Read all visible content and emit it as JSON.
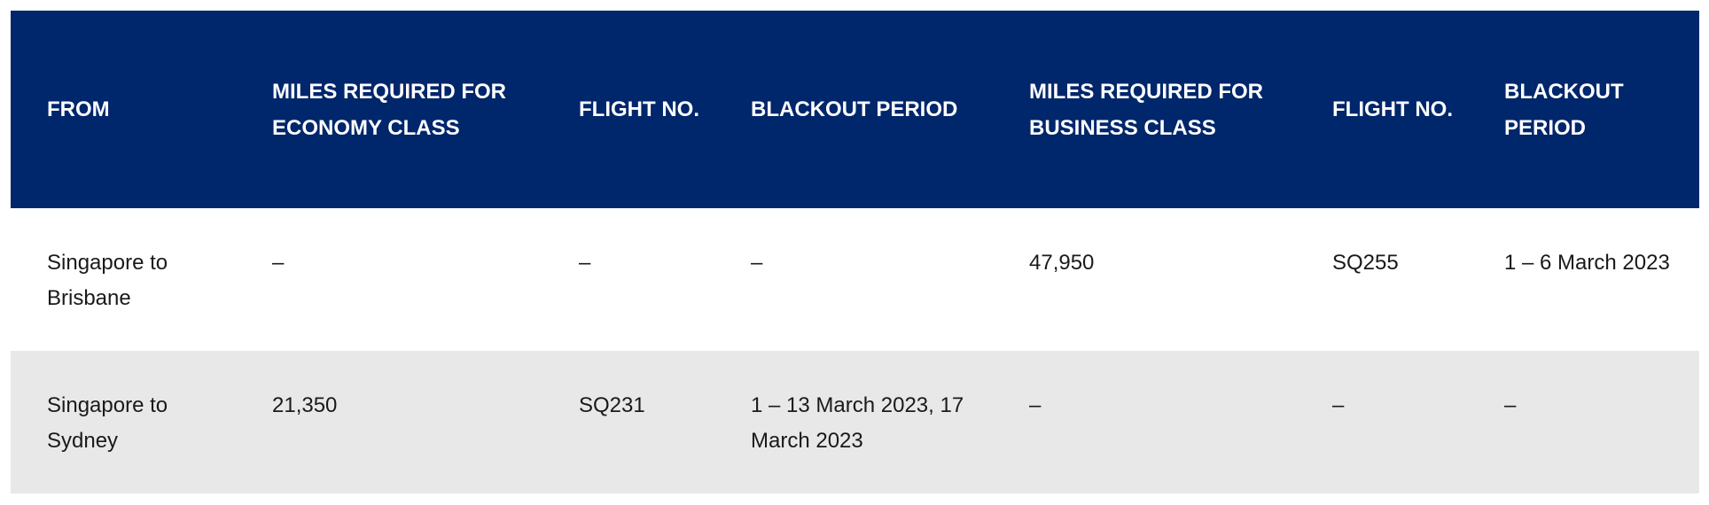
{
  "table": {
    "headers": [
      "FROM",
      "MILES REQUIRED FOR ECONOMY CLASS",
      "FLIGHT NO.",
      "BLACKOUT PERIOD",
      "MILES REQUIRED FOR BUSINESS CLASS",
      "FLIGHT NO.",
      "BLACKOUT PERIOD"
    ],
    "rows": [
      [
        "Singapore to Brisbane",
        "–",
        "–",
        "–",
        "47,950",
        "SQ255",
        "1 – 6 March 2023"
      ],
      [
        "Singapore to Sydney",
        "21,350",
        "SQ231",
        "1 – 13 March 2023, 17 March 2023",
        "–",
        "–",
        "–"
      ]
    ]
  },
  "colors": {
    "header_bg": "#00266b",
    "alt_row_bg": "#e8e8e8"
  }
}
